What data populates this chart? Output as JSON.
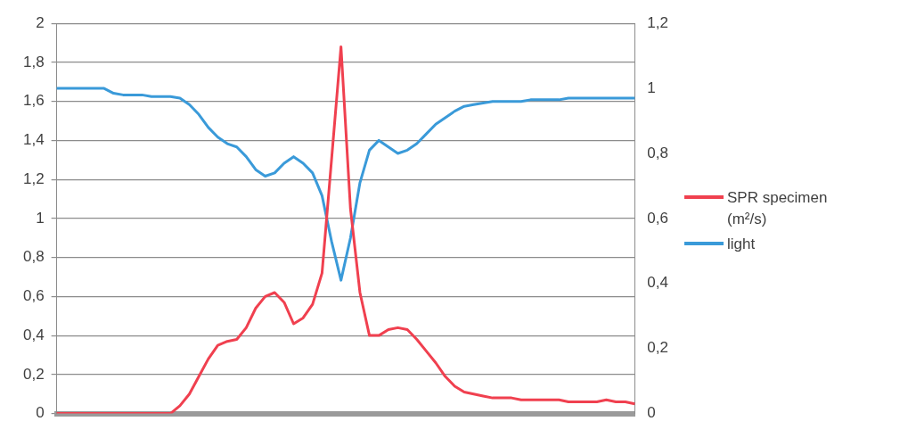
{
  "chart_data": {
    "type": "line",
    "categories": [
      null,
      null,
      null,
      null,
      null,
      null,
      null,
      null,
      null,
      null,
      null,
      null,
      null,
      null,
      null,
      null,
      null,
      null,
      null,
      null,
      null,
      null,
      null,
      null,
      null,
      null,
      null,
      null,
      null,
      null,
      null,
      null,
      null,
      null,
      null,
      null,
      null,
      null,
      null,
      null,
      null,
      null,
      null,
      null,
      null,
      null,
      null,
      null,
      null,
      null,
      null,
      null,
      null,
      null,
      null,
      null,
      null,
      null,
      null,
      null,
      null,
      null
    ],
    "series": [
      {
        "name": "SPR specimen (m²/s)",
        "color": "#f0404f",
        "values": [
          0,
          0,
          0,
          0,
          0,
          0,
          0,
          0,
          0,
          0,
          0,
          0,
          0,
          0.04,
          0.1,
          0.19,
          0.28,
          0.35,
          0.37,
          0.38,
          0.44,
          0.54,
          0.6,
          0.62,
          0.57,
          0.46,
          0.49,
          0.56,
          0.72,
          1.3,
          1.88,
          1.05,
          0.62,
          0.4,
          0.4,
          0.43,
          0.44,
          0.43,
          0.38,
          0.32,
          0.26,
          0.19,
          0.14,
          0.11,
          0.1,
          0.09,
          0.08,
          0.08,
          0.08,
          0.07,
          0.07,
          0.07,
          0.07,
          0.07,
          0.06,
          0.06,
          0.06,
          0.06,
          0.07,
          0.06,
          0.06,
          0.05
        ]
      },
      {
        "name": "light",
        "color": "#3a9ad9",
        "axis": "y2",
        "values": [
          1.0,
          1.0,
          1.0,
          1.0,
          1.0,
          1.0,
          0.985,
          0.98,
          0.98,
          0.98,
          0.975,
          0.975,
          0.975,
          0.97,
          0.95,
          0.92,
          0.88,
          0.85,
          0.83,
          0.82,
          0.79,
          0.75,
          0.73,
          0.74,
          0.77,
          0.79,
          0.77,
          0.74,
          0.67,
          0.53,
          0.41,
          0.54,
          0.71,
          0.81,
          0.84,
          0.82,
          0.8,
          0.81,
          0.83,
          0.86,
          0.89,
          0.91,
          0.93,
          0.945,
          0.95,
          0.955,
          0.96,
          0.96,
          0.96,
          0.96,
          0.965,
          0.965,
          0.965,
          0.965,
          0.97,
          0.97,
          0.97,
          0.97,
          0.97,
          0.97,
          0.97,
          0.97
        ]
      }
    ],
    "ylim": [
      0,
      2
    ],
    "yticks": [
      0,
      {
        "value": 0.2,
        "label": "0,2"
      },
      {
        "value": 0.4,
        "label": "0,4"
      },
      {
        "value": 0.6,
        "label": "0,6"
      },
      {
        "value": 0.8,
        "label": "0,8"
      },
      1,
      {
        "value": 1.2,
        "label": "1,2"
      },
      {
        "value": 1.4,
        "label": "1,4"
      },
      {
        "value": 1.6,
        "label": "1,6"
      },
      {
        "value": 1.8,
        "label": "1,8"
      },
      2
    ],
    "y2lim": [
      0,
      1.2
    ],
    "y2ticks": [
      0,
      {
        "value": 0.2,
        "label": "0,2"
      },
      {
        "value": 0.4,
        "label": "0,4"
      },
      {
        "value": 0.6,
        "label": "0,6"
      },
      {
        "value": 0.8,
        "label": "0,8"
      },
      1,
      {
        "value": 1.2,
        "label": "1,2"
      }
    ],
    "grid": "y",
    "legend": "right",
    "marker": "none",
    "line_style": "solid"
  }
}
